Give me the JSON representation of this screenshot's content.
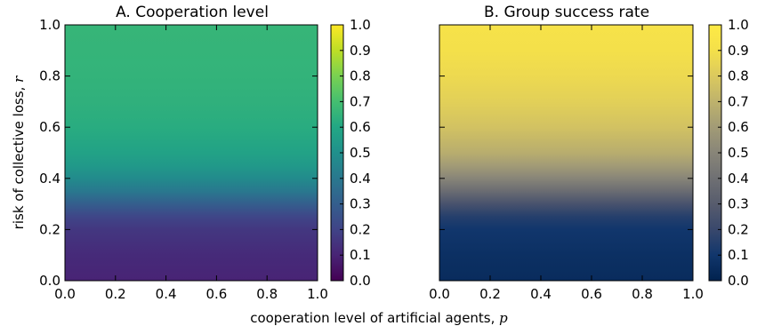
{
  "chart_data": [
    {
      "type": "heatmap",
      "title": "A. Cooperation level",
      "xlabel": "cooperation level of artificial agents, p",
      "ylabel": "risk of collective loss, r",
      "xlim": [
        0.0,
        1.0
      ],
      "ylim": [
        0.0,
        1.0
      ],
      "x_ticks": [
        "0.0",
        "0.2",
        "0.4",
        "0.6",
        "0.8",
        "1.0"
      ],
      "y_ticks": [
        "0.0",
        "0.2",
        "0.4",
        "0.6",
        "0.8",
        "1.0"
      ],
      "colormap": "viridis",
      "colorbar": {
        "range": [
          0.0,
          1.0
        ],
        "ticks": [
          "0.0",
          "0.1",
          "0.2",
          "0.3",
          "0.4",
          "0.5",
          "0.6",
          "0.7",
          "0.8",
          "0.9",
          "1.0"
        ]
      },
      "grid": false,
      "profile_along_r": {
        "r": [
          0.0,
          0.1,
          0.2,
          0.25,
          0.3,
          0.35,
          0.4,
          0.45,
          0.5,
          0.6,
          0.7,
          0.8,
          0.9,
          1.0
        ],
        "value": [
          0.1,
          0.12,
          0.16,
          0.21,
          0.3,
          0.4,
          0.48,
          0.54,
          0.58,
          0.62,
          0.64,
          0.65,
          0.655,
          0.66
        ]
      }
    },
    {
      "type": "heatmap",
      "title": "B. Group success rate",
      "xlabel": "cooperation level of artificial agents, p",
      "ylabel": "",
      "xlim": [
        0.0,
        1.0
      ],
      "ylim": [
        0.0,
        1.0
      ],
      "x_ticks": [
        "0.0",
        "0.2",
        "0.4",
        "0.6",
        "0.8",
        "1.0"
      ],
      "colormap": "cividis",
      "colorbar": {
        "range": [
          0.0,
          1.0
        ],
        "ticks": [
          "0.0",
          "0.1",
          "0.2",
          "0.3",
          "0.4",
          "0.5",
          "0.6",
          "0.7",
          "0.8",
          "0.9",
          "1.0"
        ]
      },
      "grid": false,
      "profile_along_r": {
        "r": [
          0.0,
          0.1,
          0.2,
          0.25,
          0.3,
          0.35,
          0.4,
          0.45,
          0.5,
          0.6,
          0.7,
          0.8,
          0.9,
          1.0
        ],
        "value": [
          0.05,
          0.07,
          0.1,
          0.15,
          0.25,
          0.38,
          0.5,
          0.6,
          0.68,
          0.77,
          0.83,
          0.87,
          0.9,
          0.92
        ]
      }
    }
  ]
}
